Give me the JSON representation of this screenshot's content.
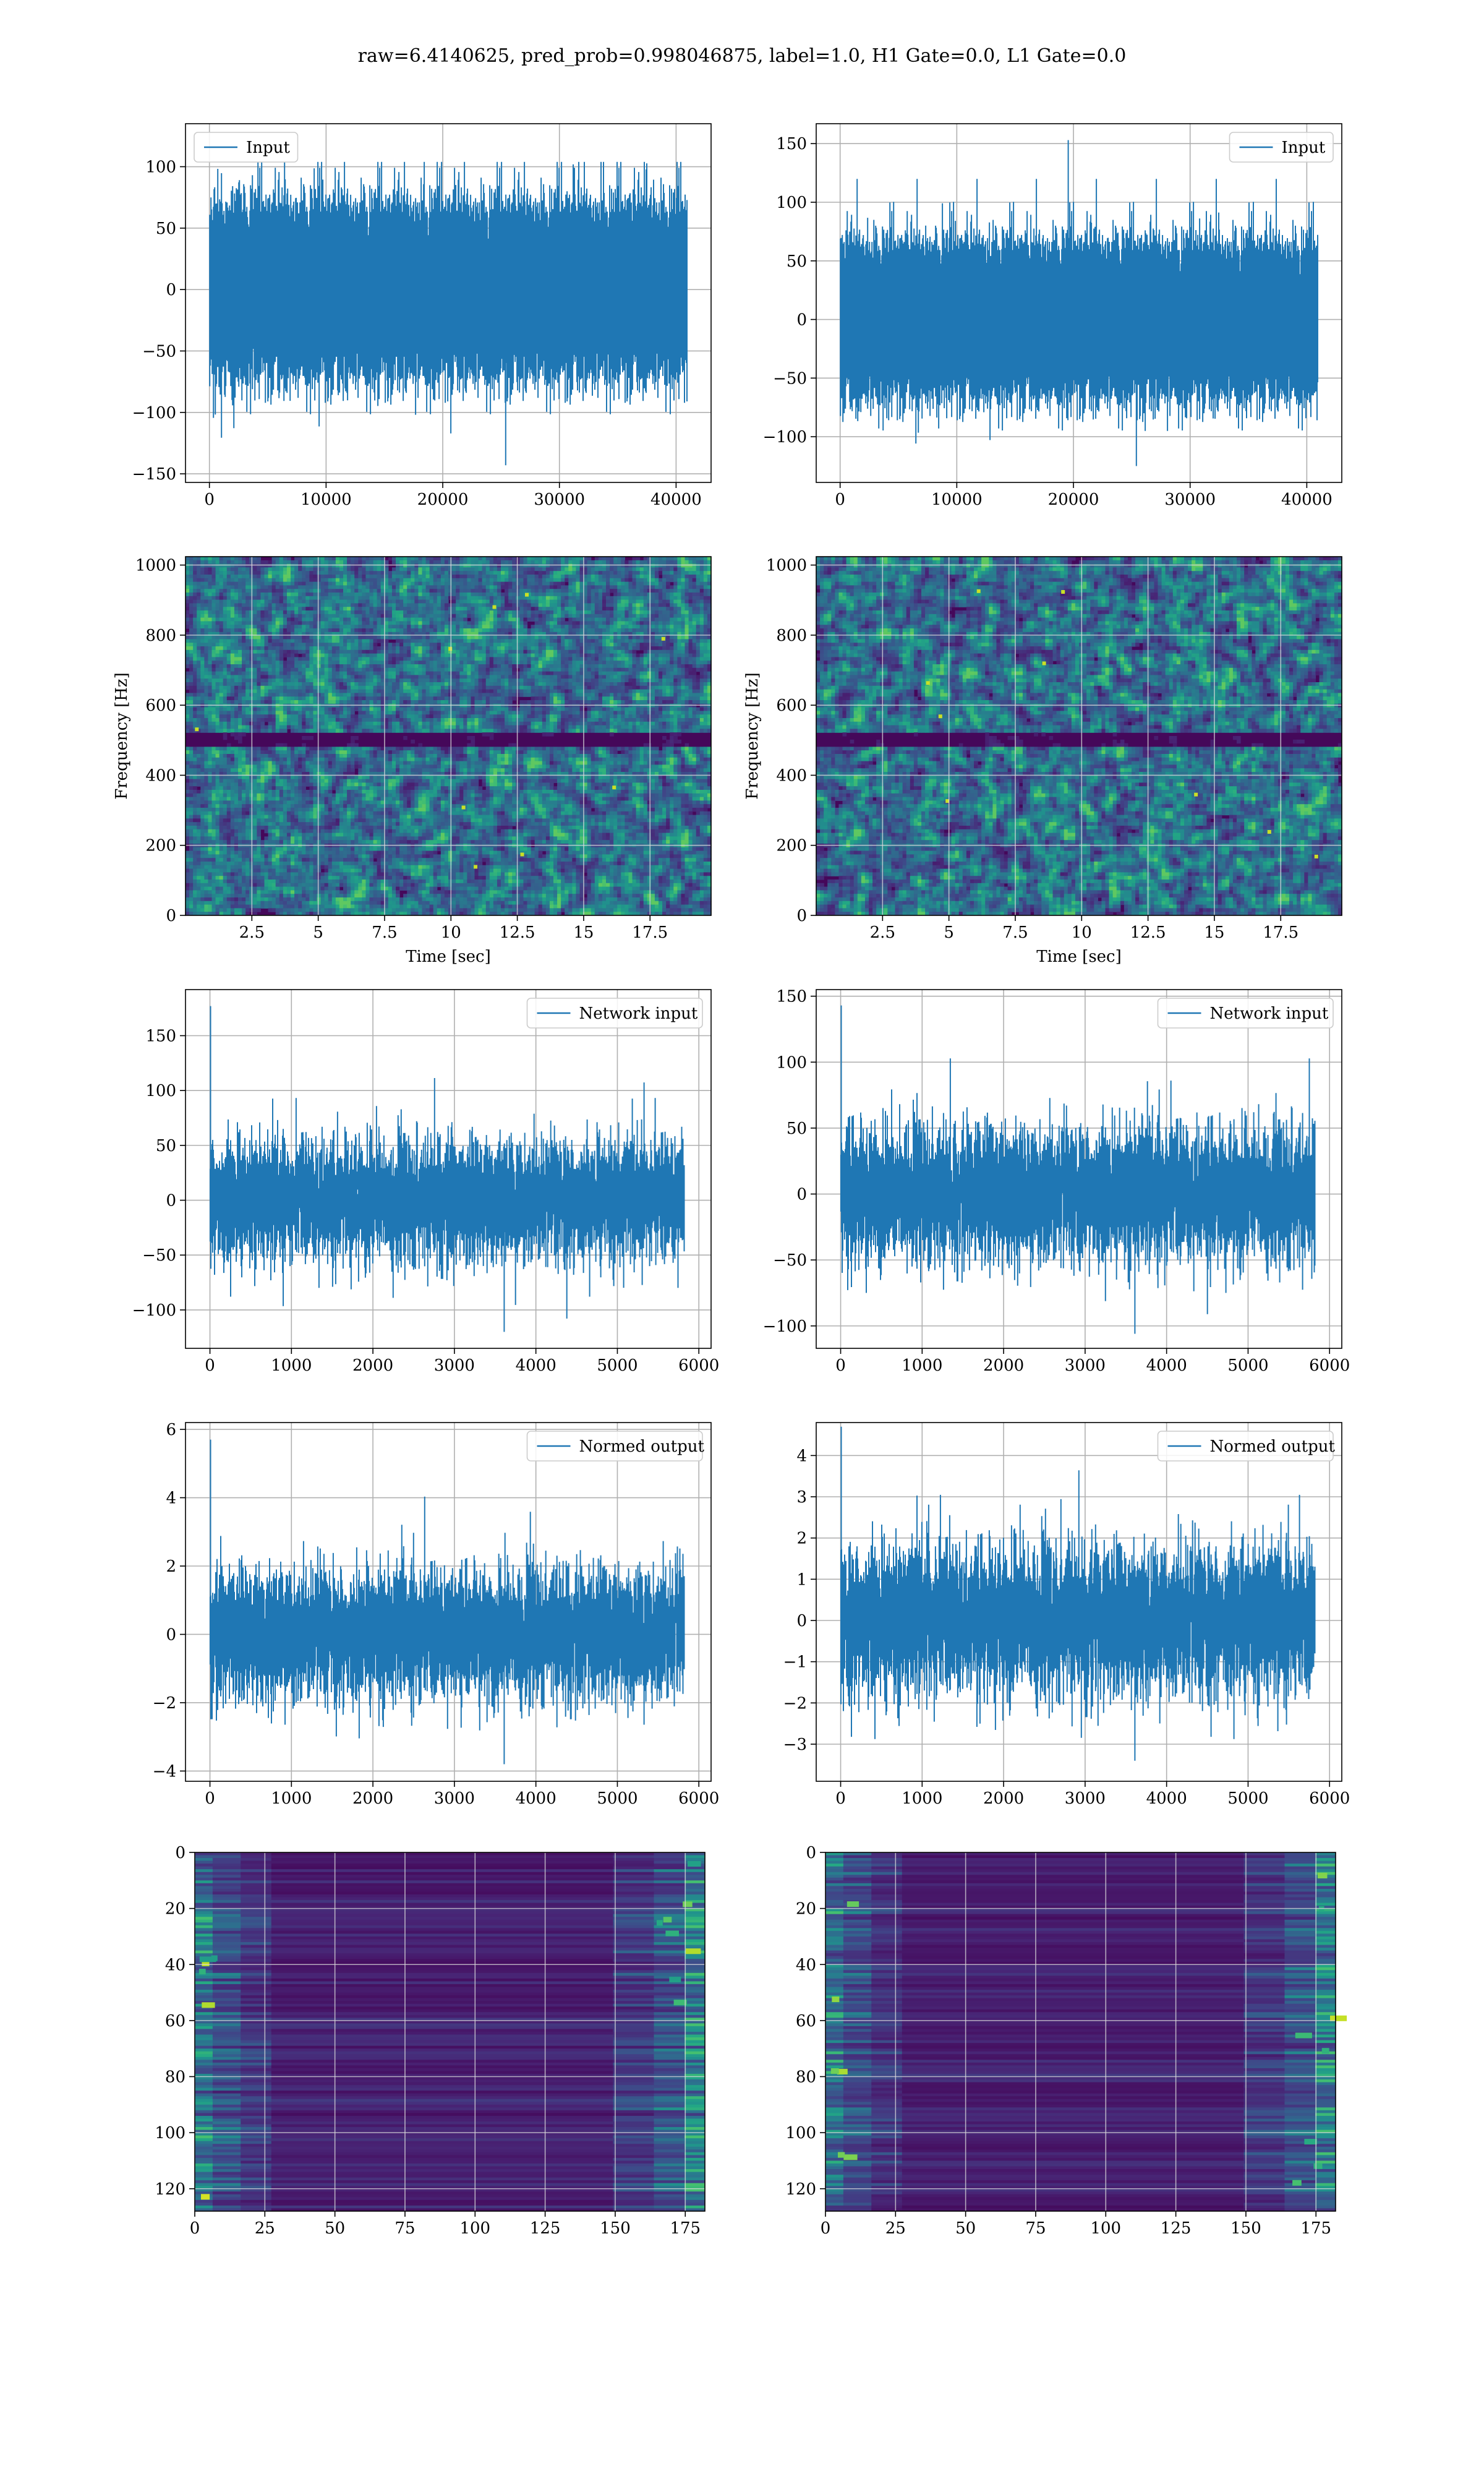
{
  "figure": {
    "title": "raw=6.4140625, pred_prob=0.998046875, label=1.0, H1 Gate=0.0, L1 Gate=0.0",
    "line_color": "#1f77b4",
    "grid_color": "#b0b0b0",
    "colormap": "viridis"
  },
  "chart_data": [
    {
      "id": "h1-input",
      "type": "line",
      "title": "",
      "xlabel": "",
      "ylabel": "",
      "series": [
        {
          "name": "Input",
          "n_points": 40960,
          "noise_rms": 30,
          "envelope": [
            -143,
            113
          ]
        }
      ],
      "xlim": [
        -2050,
        43000
      ],
      "ylim": [
        -157,
        135
      ],
      "xticks": [
        0,
        10000,
        20000,
        30000,
        40000
      ],
      "yticks": [
        -150,
        -100,
        -50,
        0,
        50,
        100
      ],
      "legend": "upper left",
      "grid": true
    },
    {
      "id": "l1-input",
      "type": "line",
      "title": "",
      "xlabel": "",
      "ylabel": "",
      "series": [
        {
          "name": "Input",
          "n_points": 40960,
          "noise_rms": 28,
          "envelope": [
            -125,
            153
          ],
          "peak": {
            "x": 19500,
            "y": 153
          }
        }
      ],
      "xlim": [
        -2050,
        43000
      ],
      "ylim": [
        -139,
        167
      ],
      "xticks": [
        0,
        10000,
        20000,
        30000,
        40000
      ],
      "yticks": [
        -100,
        -50,
        0,
        50,
        100,
        150
      ],
      "legend": "upper right",
      "grid": true
    },
    {
      "id": "h1-spectrogram",
      "type": "heatmap",
      "title": "",
      "xlabel": "Time [sec]",
      "ylabel": "Frequency [Hz]",
      "xlim": [
        0,
        19.8
      ],
      "ylim": [
        0,
        1024
      ],
      "xticks": [
        2.5,
        5.0,
        7.5,
        10.0,
        12.5,
        15.0,
        17.5
      ],
      "yticks": [
        0,
        200,
        400,
        600,
        800,
        1000
      ],
      "band_hz": 500,
      "grid": true
    },
    {
      "id": "l1-spectrogram",
      "type": "heatmap",
      "title": "",
      "xlabel": "Time [sec]",
      "ylabel": "Frequency [Hz]",
      "xlim": [
        0,
        19.8
      ],
      "ylim": [
        0,
        1024
      ],
      "xticks": [
        2.5,
        5.0,
        7.5,
        10.0,
        12.5,
        15.0,
        17.5
      ],
      "yticks": [
        0,
        200,
        400,
        600,
        800,
        1000
      ],
      "band_hz": 500,
      "grid": true
    },
    {
      "id": "h1-network-input",
      "type": "line",
      "title": "",
      "xlabel": "",
      "ylabel": "",
      "series": [
        {
          "name": "Network input",
          "n_points": 5824,
          "noise_rms": 26,
          "envelope": [
            -120,
            177
          ],
          "peak": {
            "x": 0,
            "y": 177
          }
        }
      ],
      "xlim": [
        -300,
        6150
      ],
      "ylim": [
        -135,
        192
      ],
      "xticks": [
        0,
        1000,
        2000,
        3000,
        4000,
        5000,
        6000
      ],
      "yticks": [
        -100,
        -50,
        0,
        50,
        100,
        150
      ],
      "legend": "upper right",
      "grid": true
    },
    {
      "id": "l1-network-input",
      "type": "line",
      "title": "",
      "xlabel": "",
      "ylabel": "",
      "series": [
        {
          "name": "Network input",
          "n_points": 5824,
          "noise_rms": 24,
          "envelope": [
            -106,
            143
          ],
          "peak": {
            "x": 0,
            "y": 143
          }
        }
      ],
      "xlim": [
        -300,
        6150
      ],
      "ylim": [
        -117,
        155
      ],
      "xticks": [
        0,
        1000,
        2000,
        3000,
        4000,
        5000,
        6000
      ],
      "yticks": [
        -100,
        -50,
        0,
        50,
        100,
        150
      ],
      "legend": "upper right",
      "grid": true
    },
    {
      "id": "h1-normed-output",
      "type": "line",
      "title": "",
      "xlabel": "",
      "ylabel": "",
      "series": [
        {
          "name": "Normed output",
          "n_points": 5824,
          "noise_rms": 0.9,
          "envelope": [
            -3.8,
            5.7
          ],
          "peak": {
            "x": 0,
            "y": 5.7
          }
        }
      ],
      "xlim": [
        -300,
        6150
      ],
      "ylim": [
        -4.3,
        6.2
      ],
      "xticks": [
        0,
        1000,
        2000,
        3000,
        4000,
        5000,
        6000
      ],
      "yticks": [
        -4,
        -2,
        0,
        2,
        4,
        6
      ],
      "legend": "upper right",
      "grid": true
    },
    {
      "id": "l1-normed-output",
      "type": "line",
      "title": "",
      "xlabel": "",
      "ylabel": "",
      "series": [
        {
          "name": "Normed output",
          "n_points": 5824,
          "noise_rms": 0.85,
          "envelope": [
            -3.4,
            4.7
          ],
          "peak": {
            "x": 0,
            "y": 4.7
          }
        }
      ],
      "xlim": [
        -300,
        6150
      ],
      "ylim": [
        -3.9,
        4.8
      ],
      "xticks": [
        0,
        1000,
        2000,
        3000,
        4000,
        5000,
        6000
      ],
      "yticks": [
        -3,
        -2,
        -1,
        0,
        1,
        2,
        3,
        4
      ],
      "legend": "upper right",
      "grid": true
    },
    {
      "id": "h1-feature-map",
      "type": "heatmap",
      "title": "",
      "xlabel": "",
      "ylabel": "",
      "shape": [
        128,
        182
      ],
      "xlim": [
        0,
        182
      ],
      "ylim": [
        128,
        0
      ],
      "xticks": [
        0,
        25,
        50,
        75,
        100,
        125,
        150,
        175
      ],
      "yticks": [
        0,
        20,
        40,
        60,
        80,
        100,
        120
      ],
      "grid": true
    },
    {
      "id": "l1-feature-map",
      "type": "heatmap",
      "title": "",
      "xlabel": "",
      "ylabel": "",
      "shape": [
        128,
        182
      ],
      "xlim": [
        0,
        182
      ],
      "ylim": [
        128,
        0
      ],
      "xticks": [
        0,
        25,
        50,
        75,
        100,
        125,
        150,
        175
      ],
      "yticks": [
        0,
        20,
        40,
        60,
        80,
        100,
        120
      ],
      "grid": true
    }
  ]
}
